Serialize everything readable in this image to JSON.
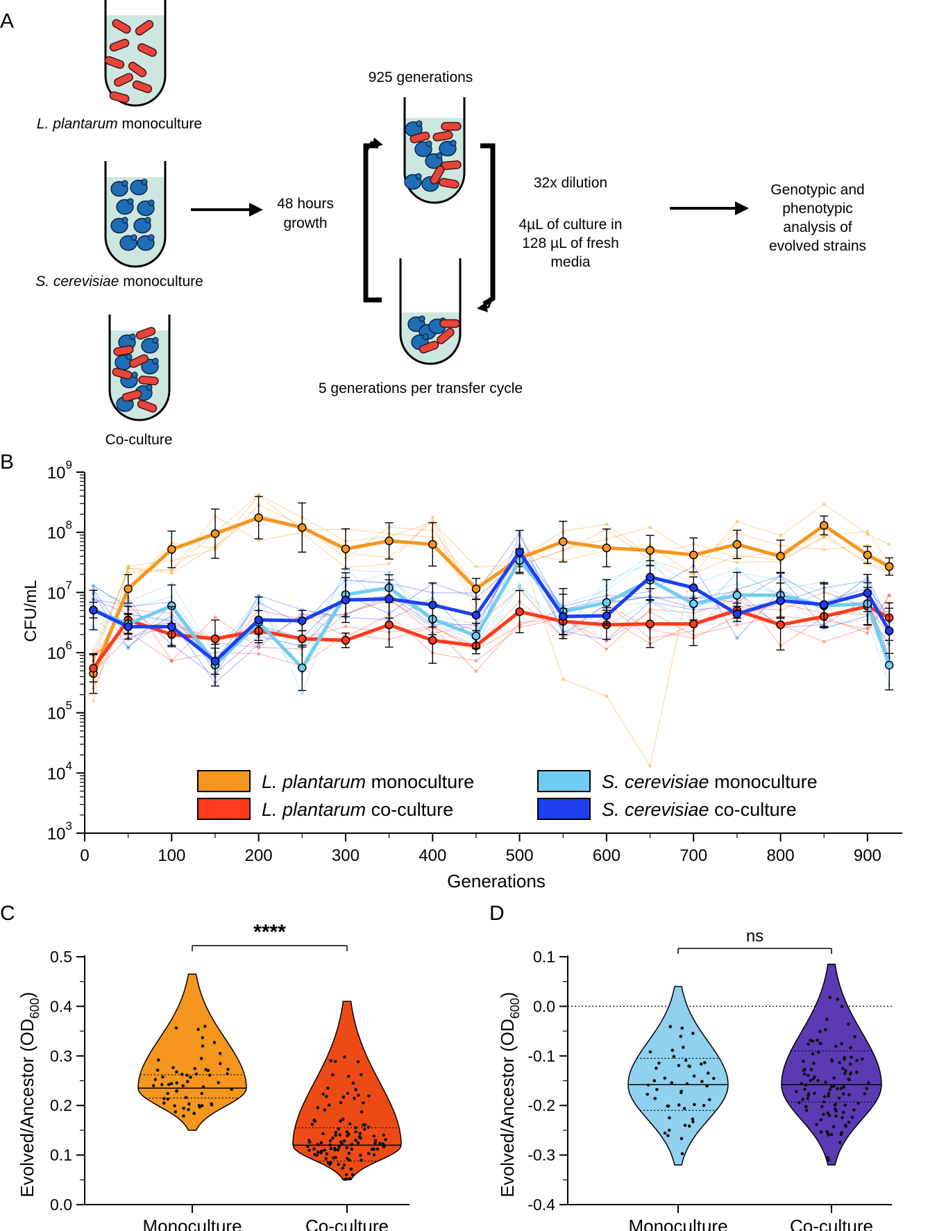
{
  "panel_a": {
    "label": "A",
    "mono_lp": {
      "italic": "L. plantarum",
      "rest": " monoculture"
    },
    "mono_sc": {
      "italic": "S. cerevisiae",
      "rest": " monoculture"
    },
    "coculture": "Co-culture",
    "growth_line1": "48 hours",
    "growth_line2": "growth",
    "generations_total": "925 generations",
    "per_cycle": "5 generations per transfer cycle",
    "dilution": "32x dilution",
    "transfer_line1": "4µL of culture in",
    "transfer_line2": "128 µL of fresh",
    "transfer_line3": "media",
    "analysis_line1": "Genotypic and",
    "analysis_line2": "phenotypic",
    "analysis_line3": "analysis of",
    "analysis_line4": "evolved strains",
    "colors": {
      "medium": "#cde6e0",
      "lacto": "#e8443a",
      "yeast": "#1f6db5"
    }
  },
  "chart_data": [
    {
      "id": "B",
      "label": "B",
      "type": "line",
      "ylabel": "CFU/mL",
      "xlabel": "Generations",
      "yscale": "log",
      "ylim": [
        1000,
        1000000000
      ],
      "y_ticks": [
        {
          "base": "10",
          "exp": "3"
        },
        {
          "base": "10",
          "exp": "4"
        },
        {
          "base": "10",
          "exp": "5"
        },
        {
          "base": "10",
          "exp": "6"
        },
        {
          "base": "10",
          "exp": "7"
        },
        {
          "base": "10",
          "exp": "8"
        },
        {
          "base": "10",
          "exp": "9"
        }
      ],
      "xlim": [
        0,
        940
      ],
      "x_ticks": [
        "0",
        "100",
        "200",
        "300",
        "400",
        "500",
        "600",
        "700",
        "800",
        "900"
      ],
      "x": [
        10,
        50,
        100,
        150,
        200,
        250,
        300,
        350,
        400,
        450,
        500,
        550,
        600,
        650,
        700,
        750,
        800,
        850,
        900,
        925
      ],
      "series": [
        {
          "name_italic": "L. plantarum",
          "name_rest": " monoculture",
          "color": "#f5961e",
          "values": [
            450000,
            11500000,
            52000000,
            95000000,
            175000000,
            120000000,
            53000000,
            72000000,
            63000000,
            11500000,
            37000000,
            70000000,
            55000000,
            50000000,
            42000000,
            63000000,
            40000000,
            130000000,
            42000000,
            27000000
          ]
        },
        {
          "name_italic": "L. plantarum",
          "name_rest": " co-culture",
          "color": "#ff3a1c",
          "values": [
            550000,
            3500000,
            2000000,
            1700000,
            2300000,
            1700000,
            1600000,
            2900000,
            1600000,
            1300000,
            4800000,
            3300000,
            2900000,
            3000000,
            3000000,
            5000000,
            2900000,
            4000000,
            5900000,
            3800000
          ]
        },
        {
          "name_italic": "S. cerevisiae",
          "name_rest": " monoculture",
          "color": "#71ccf2",
          "values": [
            5100000,
            3000000,
            6000000,
            620000,
            3200000,
            560000,
            9200000,
            12000000,
            3600000,
            1900000,
            34000000,
            4800000,
            6800000,
            16000000,
            6500000,
            9000000,
            9000000,
            6000000,
            6500000,
            620000
          ]
        },
        {
          "name_italic": "S. cerevisiae",
          "name_rest": " co-culture",
          "color": "#1e3ff0",
          "values": [
            5100000,
            2700000,
            2700000,
            720000,
            3500000,
            3400000,
            7500000,
            7800000,
            6200000,
            4200000,
            47000000,
            4000000,
            4100000,
            18000000,
            12000000,
            4400000,
            7300000,
            6300000,
            9800000,
            2300000
          ]
        }
      ]
    },
    {
      "id": "C",
      "label": "C",
      "type": "violin",
      "ylabel_main": "Evolved/Ancestor (OD",
      "ylabel_sub": "600",
      "ylabel_end": ")",
      "ylim": [
        0.0,
        0.5
      ],
      "y_ticks": [
        "0.0",
        "0.1",
        "0.2",
        "0.3",
        "0.4",
        "0.5"
      ],
      "categories": [
        "Monoculture",
        "Co-culture"
      ],
      "significance": "****",
      "groups": [
        {
          "name": "Monoculture",
          "color": "#f5961e",
          "min": 0.15,
          "max": 0.465,
          "median": 0.235,
          "q1": 0.215,
          "q3": 0.262
        },
        {
          "name": "Co-culture",
          "color": "#ee4a16",
          "min": 0.05,
          "max": 0.41,
          "median": 0.12,
          "q1": 0.088,
          "q3": 0.155
        }
      ]
    },
    {
      "id": "D",
      "label": "D",
      "type": "violin",
      "ylabel_main": "Evolved/Ancestor (OD",
      "ylabel_sub": "600",
      "ylabel_end": ")",
      "ylim": [
        -0.4,
        0.1
      ],
      "y_ticks": [
        "-0.4",
        "-0.3",
        "-0.2",
        "-0.1",
        "0.0",
        "0.1"
      ],
      "categories": [
        "Monoculture",
        "Co-culture"
      ],
      "significance": "ns",
      "groups": [
        {
          "name": "Monoculture",
          "color": "#8fd1ee",
          "min": -0.32,
          "max": 0.04,
          "median": -0.158,
          "q1": -0.21,
          "q3": -0.105
        },
        {
          "name": "Co-culture",
          "color": "#5b3ab4",
          "min": -0.32,
          "max": 0.085,
          "median": -0.158,
          "q1": -0.193,
          "q3": -0.09
        }
      ]
    }
  ]
}
